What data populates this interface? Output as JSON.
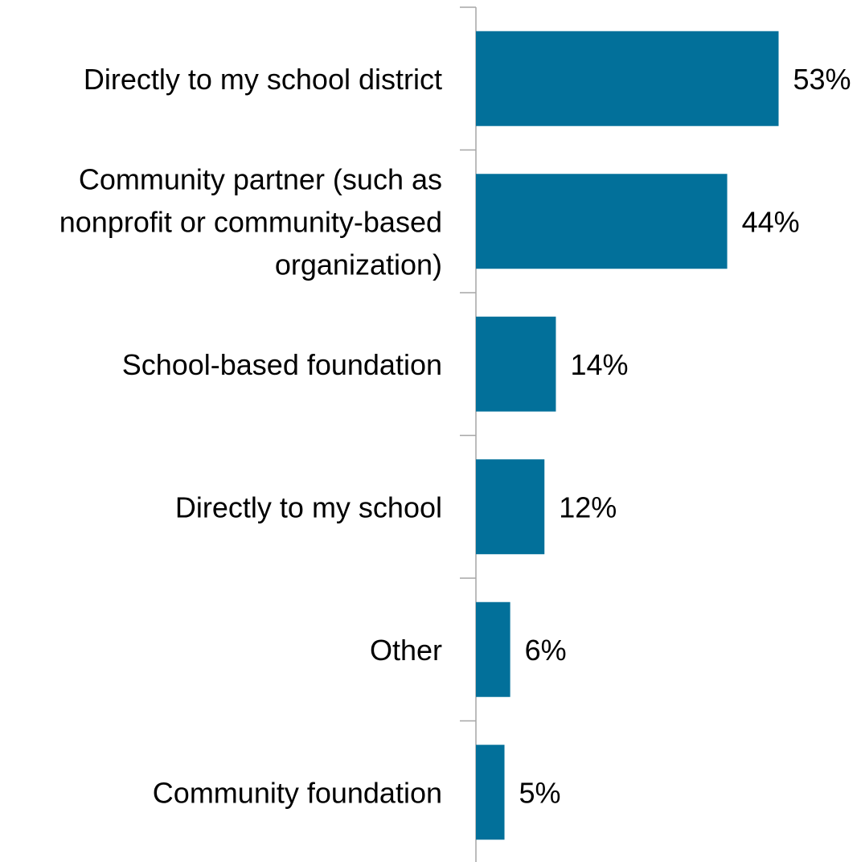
{
  "chart_data": {
    "type": "bar",
    "orientation": "horizontal",
    "categories": [
      "Directly to my school district",
      "Community partner (such as nonprofit or community-based organization)",
      "School-based foundation",
      "Directly to my school",
      "Other",
      "Community foundation"
    ],
    "category_lines": [
      [
        "Directly to my school district"
      ],
      [
        "Community partner (such as",
        "nonprofit or community-based",
        "organization)"
      ],
      [
        "School-based foundation"
      ],
      [
        "Directly to my school"
      ],
      [
        "Other"
      ],
      [
        "Community foundation"
      ]
    ],
    "values": [
      53,
      44,
      14,
      12,
      6,
      5
    ],
    "value_labels": [
      "53%",
      "44%",
      "14%",
      "12%",
      "6%",
      "5%"
    ],
    "unit": "%",
    "title": "",
    "xlabel": "",
    "ylabel": "",
    "xlim": [
      0,
      60
    ],
    "grid": false,
    "legend": "none",
    "bar_color": "#02709a",
    "axis_color": "#a6a6a6"
  }
}
